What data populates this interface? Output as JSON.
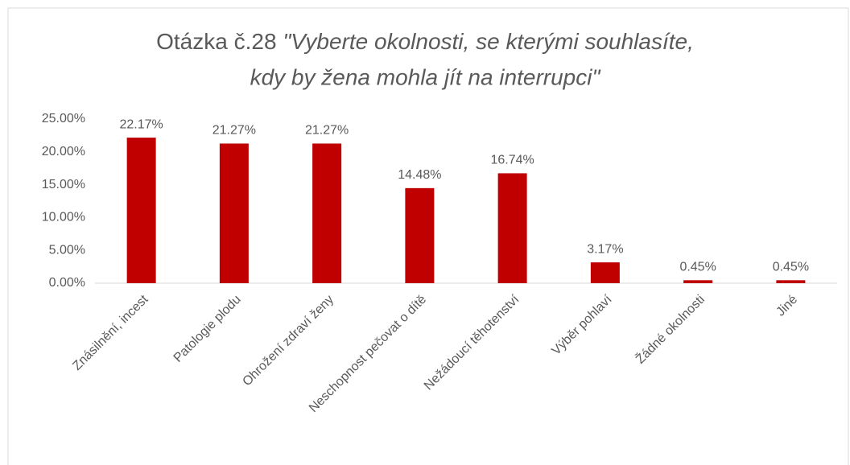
{
  "chart_data": {
    "type": "bar",
    "title": [
      "Otázka č.28 ",
      "\"Vyberte okolnosti, se kterými souhlasíte,",
      "kdy by žena mohla jít na interrupci\""
    ],
    "categories": [
      "Znásilnění, incest",
      "Patologie plodu",
      "Ohrožení zdraví ženy",
      "Neschopnost pečovat o dítě",
      "Nežádoucí těhotenství",
      "Výběr pohlaví",
      "Žádné okolnosti",
      "Jiné"
    ],
    "values": [
      22.17,
      21.27,
      21.27,
      14.48,
      16.74,
      3.17,
      0.45,
      0.45
    ],
    "value_labels": [
      "22.17%",
      "21.27%",
      "21.27%",
      "14.48%",
      "16.74%",
      "3.17%",
      "0.45%",
      "0.45%"
    ],
    "color": "#c00000",
    "ylim": [
      0,
      25
    ],
    "yticks": [
      {
        "value": 0,
        "label": "0.00%"
      },
      {
        "value": 5,
        "label": "5.00%"
      },
      {
        "value": 10,
        "label": "10.00%"
      },
      {
        "value": 15,
        "label": "15.00%"
      },
      {
        "value": 20,
        "label": "20.00%"
      },
      {
        "value": 25,
        "label": "25.00%"
      }
    ],
    "grid": false
  }
}
